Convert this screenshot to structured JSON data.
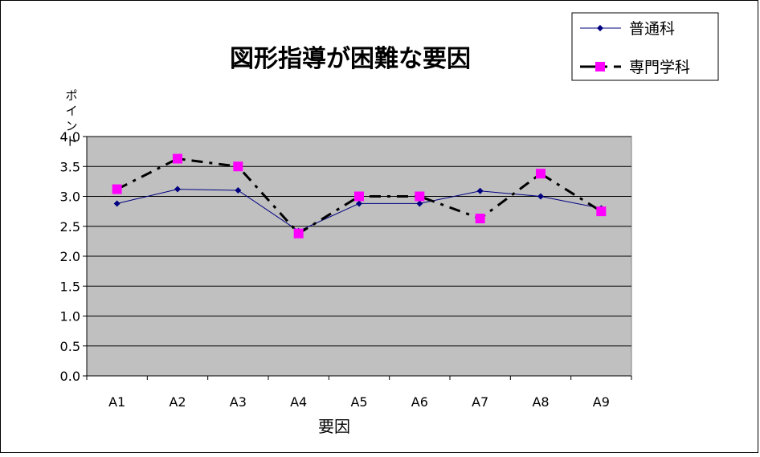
{
  "chart_data": {
    "type": "line",
    "title": "図形指導が困難な要因",
    "xlabel": "要因",
    "ylabel": "ポイント",
    "categories": [
      "A1",
      "A2",
      "A3",
      "A4",
      "A5",
      "A6",
      "A7",
      "A8",
      "A9"
    ],
    "ylim": [
      0,
      4
    ],
    "yticks": [
      0.0,
      0.5,
      1.0,
      1.5,
      2.0,
      2.5,
      3.0,
      3.5,
      4.0
    ],
    "ytick_labels": [
      "0.0",
      "0.5",
      "1.0",
      "1.5",
      "2.0",
      "2.5",
      "3.0",
      "3.5",
      "4.0"
    ],
    "grid": true,
    "legend_position": "top-right",
    "plot_background": "#c0c0c0",
    "series": [
      {
        "name": "普通科",
        "values": [
          2.88,
          3.12,
          3.1,
          2.42,
          2.88,
          2.88,
          3.09,
          3.0,
          2.8
        ],
        "color": "#000080",
        "line_style": "solid",
        "marker": "diamond"
      },
      {
        "name": "専門学科",
        "values": [
          3.12,
          3.63,
          3.5,
          2.38,
          3.0,
          3.0,
          2.63,
          3.38,
          2.75
        ],
        "color": "#000000",
        "marker_color": "#ff00ff",
        "line_style": "dashed",
        "marker": "square"
      }
    ]
  }
}
